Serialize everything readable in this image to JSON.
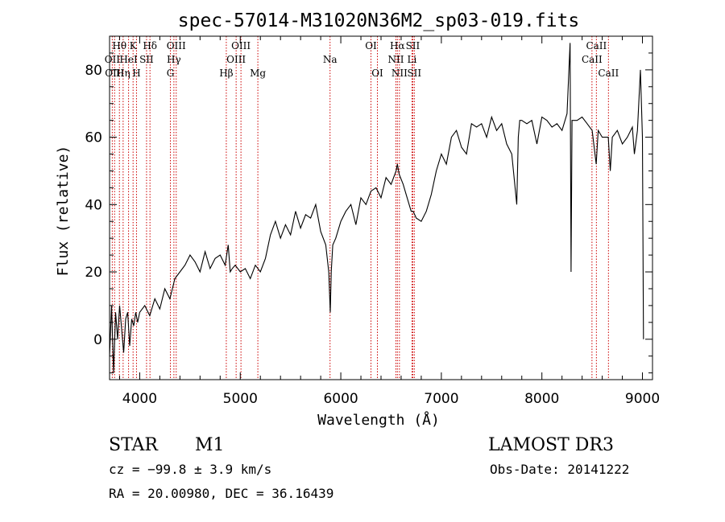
{
  "chart_data": {
    "type": "line",
    "title": "spec-57014-M31020N36M2_sp03-019.fits",
    "xlabel": "Wavelength (Å)",
    "ylabel": "Flux (relative)",
    "xlim": [
      3700,
      9100
    ],
    "ylim": [
      -12,
      90
    ],
    "x_ticks": [
      4000,
      5000,
      6000,
      7000,
      8000,
      9000
    ],
    "y_ticks": [
      0,
      20,
      40,
      60,
      80
    ],
    "grid": false,
    "series": [
      {
        "name": "spectrum",
        "x": [
          3700,
          3720,
          3740,
          3760,
          3780,
          3800,
          3820,
          3840,
          3860,
          3880,
          3900,
          3920,
          3940,
          3960,
          3980,
          4000,
          4050,
          4100,
          4150,
          4200,
          4250,
          4300,
          4350,
          4400,
          4450,
          4500,
          4550,
          4600,
          4650,
          4700,
          4750,
          4800,
          4850,
          4880,
          4900,
          4920,
          4950,
          5000,
          5050,
          5100,
          5150,
          5200,
          5250,
          5300,
          5350,
          5400,
          5450,
          5500,
          5550,
          5600,
          5650,
          5700,
          5750,
          5800,
          5850,
          5880,
          5895,
          5905,
          5920,
          5950,
          6000,
          6050,
          6100,
          6150,
          6200,
          6250,
          6300,
          6350,
          6400,
          6450,
          6500,
          6550,
          6563,
          6580,
          6620,
          6650,
          6700,
          6720,
          6750,
          6800,
          6850,
          6900,
          6950,
          7000,
          7050,
          7100,
          7150,
          7200,
          7250,
          7300,
          7350,
          7400,
          7450,
          7500,
          7550,
          7600,
          7650,
          7700,
          7750,
          7765,
          7780,
          7800,
          7850,
          7900,
          7950,
          8000,
          8050,
          8100,
          8150,
          8200,
          8250,
          8280,
          8290,
          8300,
          8350,
          8400,
          8450,
          8500,
          8540,
          8560,
          8600,
          8660,
          8680,
          8700,
          8750,
          8800,
          8850,
          8900,
          8920,
          8950,
          8980,
          9000,
          9010
        ],
        "values": [
          -5,
          10,
          -10,
          8,
          0,
          10,
          3,
          -4,
          6,
          8,
          -2,
          6,
          4,
          8,
          5,
          8,
          10,
          7,
          12,
          9,
          15,
          12,
          18,
          20,
          22,
          25,
          23,
          20,
          26,
          21,
          24,
          25,
          22,
          28,
          20,
          21,
          22,
          20,
          21,
          18,
          22,
          20,
          24,
          31,
          35,
          30,
          34,
          31,
          38,
          33,
          37,
          36,
          40,
          32,
          28,
          20,
          8,
          20,
          28,
          30,
          35,
          38,
          40,
          34,
          42,
          40,
          44,
          45,
          42,
          48,
          46,
          50,
          52,
          49,
          46,
          43,
          38,
          38,
          36,
          35,
          38,
          43,
          50,
          55,
          52,
          60,
          62,
          57,
          55,
          64,
          63,
          64,
          60,
          66,
          62,
          64,
          58,
          55,
          40,
          60,
          65,
          65,
          64,
          65,
          58,
          66,
          65,
          63,
          64,
          62,
          67,
          88,
          20,
          65,
          65,
          66,
          64,
          62,
          52,
          62,
          60,
          60,
          50,
          60,
          62,
          58,
          60,
          63,
          55,
          62,
          80,
          60,
          0
        ]
      }
    ],
    "line_labels": [
      {
        "text": "Hθ",
        "x": 3798,
        "row": 0
      },
      {
        "text": "K",
        "x": 3934,
        "row": 0
      },
      {
        "text": "Hδ",
        "x": 4102,
        "row": 0
      },
      {
        "text": "OIII",
        "x": 4363,
        "row": 0
      },
      {
        "text": "OIII",
        "x": 5007,
        "row": 0
      },
      {
        "text": "OI",
        "x": 6300,
        "row": 0
      },
      {
        "text": "Hα",
        "x": 6563,
        "row": 0
      },
      {
        "text": "SII",
        "x": 6716,
        "row": 0
      },
      {
        "text": "CaII",
        "x": 8542,
        "row": 0
      },
      {
        "text": "OII",
        "x": 3727,
        "row": 1
      },
      {
        "text": "HeI",
        "x": 3889,
        "row": 1
      },
      {
        "text": "SII",
        "x": 4068,
        "row": 1
      },
      {
        "text": "Hγ",
        "x": 4340,
        "row": 1
      },
      {
        "text": "OIII",
        "x": 4959,
        "row": 1
      },
      {
        "text": "Na",
        "x": 5893,
        "row": 1
      },
      {
        "text": "NII",
        "x": 6548,
        "row": 1
      },
      {
        "text": "Li",
        "x": 6708,
        "row": 1
      },
      {
        "text": "CaII",
        "x": 8498,
        "row": 1
      },
      {
        "text": "OIII",
        "x": 3750,
        "row": 2
      },
      {
        "text": "Hη",
        "x": 3835,
        "row": 2
      },
      {
        "text": "H",
        "x": 3968,
        "row": 2
      },
      {
        "text": "G",
        "x": 4305,
        "row": 2
      },
      {
        "text": "Hβ",
        "x": 4861,
        "row": 2
      },
      {
        "text": "Mg",
        "x": 5175,
        "row": 2
      },
      {
        "text": "OI",
        "x": 6364,
        "row": 2
      },
      {
        "text": "NII",
        "x": 6583,
        "row": 2
      },
      {
        "text": "SII",
        "x": 6731,
        "row": 2
      },
      {
        "text": "CaII",
        "x": 8662,
        "row": 2
      }
    ],
    "line_markers": [
      3727,
      3750,
      3798,
      3835,
      3889,
      3934,
      3968,
      4068,
      4102,
      4305,
      4340,
      4363,
      4861,
      4959,
      5007,
      5175,
      5893,
      6300,
      6364,
      6548,
      6563,
      6583,
      6708,
      6716,
      6731,
      8498,
      8542,
      8662
    ],
    "marker_color": "#cc0000"
  },
  "info": {
    "object_class": "STAR",
    "subclass": "M1",
    "survey": "LAMOST DR3",
    "redshift": "cz = −99.8 ± 3.9 km/s",
    "obs_date": "Obs-Date: 20141222",
    "coords": "RA =  20.00980, DEC =  36.16439"
  }
}
